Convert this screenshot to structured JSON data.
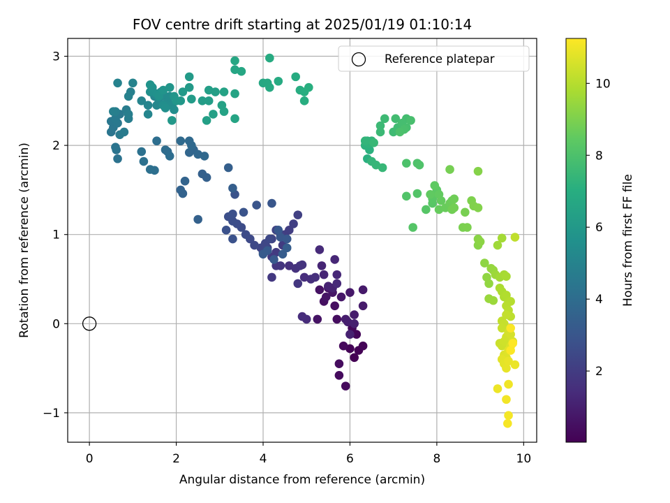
{
  "chart_data": {
    "type": "scatter",
    "title": "FOV centre drift starting at 2025/01/19 01:10:14",
    "xlabel": "Angular distance from reference (arcmin)",
    "ylabel": "Rotation from reference (arcmin)",
    "xlim": [
      -0.5,
      10.3
    ],
    "ylim": [
      -1.33,
      3.2
    ],
    "xticks": [
      0,
      2,
      4,
      6,
      8,
      10
    ],
    "xtick_labels": [
      "0",
      "2",
      "4",
      "6",
      "8",
      "10"
    ],
    "yticks": [
      -1,
      0,
      1,
      2,
      3
    ],
    "ytick_labels": [
      "−1",
      "0",
      "1",
      "2",
      "3"
    ],
    "grid": true,
    "legend": {
      "location": "upper right",
      "entries": [
        "Reference platepar"
      ]
    },
    "reference_point": {
      "x": 0,
      "y": 0,
      "label": "Reference platepar",
      "marker": "hollow circle"
    },
    "colormap": "viridis",
    "colorbar": {
      "label": "Hours from first FF file",
      "range": [
        0.02,
        11.25
      ],
      "ticks": [
        2,
        4,
        6,
        8,
        10
      ]
    },
    "series": [
      {
        "points": [
          [
            6.1,
            -0.38
          ],
          [
            6.2,
            -0.3
          ],
          [
            6.0,
            -0.28
          ],
          [
            6.3,
            -0.25
          ],
          [
            6.15,
            -0.12
          ],
          [
            6.05,
            -0.05
          ],
          [
            5.85,
            -0.25
          ],
          [
            5.9,
            -0.7
          ],
          [
            5.75,
            -0.58
          ],
          [
            5.75,
            -0.45
          ],
          [
            5.7,
            0.05
          ],
          [
            5.65,
            0.2
          ],
          [
            5.4,
            0.25
          ],
          [
            5.5,
            0.4
          ],
          [
            5.3,
            0.38
          ],
          [
            5.25,
            0.05
          ],
          [
            5.45,
            0.3
          ],
          [
            5.6,
            0.35
          ],
          [
            5.8,
            0.3
          ],
          [
            6.0,
            0.35
          ],
          [
            6.3,
            0.38
          ],
          [
            6.3,
            0.2
          ],
          [
            6.1,
            0.1
          ],
          [
            5.9,
            0.05
          ],
          [
            5.95,
            0.02
          ],
          [
            6.1,
            0.0
          ],
          [
            6.0,
            -0.12
          ],
          [
            5.6,
            0.4
          ],
          [
            5.5,
            0.42
          ],
          [
            5.35,
            0.65
          ],
          [
            5.4,
            0.55
          ],
          [
            5.65,
            0.72
          ],
          [
            5.7,
            0.55
          ],
          [
            5.7,
            0.45
          ],
          [
            5.3,
            0.83
          ],
          [
            5.0,
            0.05
          ],
          [
            4.9,
            0.08
          ],
          [
            4.95,
            0.52
          ],
          [
            5.1,
            0.5
          ],
          [
            5.2,
            0.52
          ]
        ]
      },
      {
        "points": [
          [
            4.6,
            0.65
          ],
          [
            4.75,
            0.62
          ],
          [
            4.85,
            0.65
          ],
          [
            4.9,
            0.66
          ],
          [
            4.4,
            0.65
          ],
          [
            4.3,
            0.65
          ],
          [
            4.8,
            0.45
          ],
          [
            4.2,
            0.52
          ],
          [
            4.2,
            0.75
          ],
          [
            4.3,
            0.8
          ],
          [
            4.45,
            0.88
          ],
          [
            4.5,
            1.0
          ],
          [
            4.6,
            1.05
          ],
          [
            4.7,
            1.12
          ],
          [
            4.8,
            1.22
          ],
          [
            4.4,
            1.0
          ],
          [
            4.3,
            1.05
          ],
          [
            4.2,
            0.95
          ],
          [
            4.1,
            0.85
          ],
          [
            4.0,
            0.8
          ],
          [
            3.95,
            0.85
          ],
          [
            4.05,
            0.9
          ],
          [
            4.15,
            0.95
          ],
          [
            3.8,
            0.88
          ],
          [
            3.7,
            0.95
          ],
          [
            3.6,
            1.0
          ],
          [
            3.5,
            1.08
          ],
          [
            3.4,
            1.12
          ],
          [
            3.3,
            1.15
          ],
          [
            3.2,
            1.2
          ],
          [
            3.3,
            1.23
          ],
          [
            3.15,
            1.05
          ],
          [
            3.3,
            0.95
          ],
          [
            3.35,
            1.45
          ],
          [
            3.55,
            1.25
          ],
          [
            3.85,
            1.33
          ],
          [
            4.2,
            1.35
          ],
          [
            4.4,
            0.97
          ],
          [
            4.55,
            0.95
          ],
          [
            4.35,
            1.05
          ],
          [
            4.25,
            0.72
          ],
          [
            4.1,
            0.82
          ],
          [
            4.0,
            0.78
          ],
          [
            4.45,
            0.78
          ],
          [
            4.55,
            0.85
          ]
        ]
      },
      {
        "points": [
          [
            3.3,
            1.52
          ],
          [
            3.2,
            1.75
          ],
          [
            2.7,
            1.64
          ],
          [
            2.6,
            1.68
          ],
          [
            2.5,
            1.17
          ],
          [
            2.1,
            1.5
          ],
          [
            2.15,
            1.46
          ],
          [
            2.2,
            1.6
          ],
          [
            2.4,
            1.95
          ],
          [
            2.3,
            1.92
          ],
          [
            2.5,
            1.9
          ],
          [
            2.65,
            1.88
          ],
          [
            2.35,
            2.0
          ],
          [
            2.3,
            2.05
          ],
          [
            2.1,
            2.05
          ],
          [
            1.8,
            1.93
          ],
          [
            1.75,
            1.95
          ],
          [
            1.85,
            1.88
          ],
          [
            1.55,
            2.05
          ],
          [
            1.5,
            1.72
          ],
          [
            1.4,
            1.73
          ],
          [
            1.25,
            1.82
          ],
          [
            1.2,
            1.93
          ]
        ]
      },
      {
        "points": [
          [
            0.65,
            1.85
          ],
          [
            0.62,
            1.95
          ],
          [
            0.6,
            1.98
          ],
          [
            0.5,
            2.15
          ],
          [
            0.55,
            2.2
          ],
          [
            0.5,
            2.27
          ],
          [
            0.65,
            2.25
          ],
          [
            0.7,
            2.35
          ],
          [
            0.6,
            2.3
          ],
          [
            0.7,
            2.12
          ],
          [
            0.8,
            2.15
          ],
          [
            0.85,
            2.4
          ],
          [
            0.9,
            2.3
          ],
          [
            0.9,
            2.35
          ],
          [
            0.6,
            2.38
          ],
          [
            0.55,
            2.38
          ],
          [
            0.95,
            2.6
          ],
          [
            0.9,
            2.55
          ],
          [
            0.65,
            2.7
          ],
          [
            1.0,
            2.7
          ],
          [
            1.2,
            2.5
          ],
          [
            1.35,
            2.45
          ],
          [
            1.35,
            2.35
          ],
          [
            1.5,
            2.55
          ],
          [
            1.55,
            2.45
          ],
          [
            1.6,
            2.5
          ],
          [
            1.65,
            2.6
          ],
          [
            1.75,
            2.55
          ],
          [
            1.8,
            2.5
          ],
          [
            1.85,
            2.55
          ],
          [
            1.9,
            2.45
          ],
          [
            1.95,
            2.4
          ],
          [
            1.7,
            2.45
          ],
          [
            1.75,
            2.42
          ],
          [
            1.4,
            2.6
          ],
          [
            1.45,
            2.65
          ],
          [
            1.55,
            2.58
          ],
          [
            1.6,
            2.55
          ],
          [
            1.4,
            2.68
          ],
          [
            1.7,
            2.62
          ],
          [
            1.85,
            2.65
          ],
          [
            1.95,
            2.55
          ],
          [
            2.0,
            2.5
          ],
          [
            2.1,
            2.5
          ],
          [
            1.9,
            2.28
          ]
        ]
      },
      {
        "points": [
          [
            2.15,
            2.6
          ],
          [
            2.3,
            2.65
          ],
          [
            2.3,
            2.77
          ],
          [
            2.35,
            2.52
          ],
          [
            2.6,
            2.5
          ],
          [
            2.75,
            2.5
          ],
          [
            2.75,
            2.62
          ],
          [
            2.9,
            2.6
          ],
          [
            2.7,
            2.28
          ],
          [
            2.85,
            2.35
          ],
          [
            3.05,
            2.45
          ],
          [
            3.1,
            2.38
          ],
          [
            3.1,
            2.6
          ],
          [
            3.35,
            2.58
          ],
          [
            3.35,
            2.3
          ],
          [
            3.35,
            2.85
          ],
          [
            3.35,
            2.95
          ],
          [
            3.5,
            2.83
          ],
          [
            4.0,
            2.7
          ],
          [
            4.1,
            2.7
          ],
          [
            4.15,
            2.65
          ],
          [
            4.35,
            2.72
          ],
          [
            4.15,
            2.98
          ],
          [
            4.75,
            2.77
          ],
          [
            4.85,
            2.62
          ],
          [
            4.95,
            2.5
          ],
          [
            4.95,
            2.6
          ],
          [
            5.05,
            2.65
          ]
        ]
      },
      {
        "points": [
          [
            6.4,
            1.85
          ],
          [
            6.45,
            1.95
          ],
          [
            6.35,
            2.0
          ],
          [
            6.4,
            2.05
          ],
          [
            6.45,
            2.02
          ],
          [
            6.5,
            2.05
          ],
          [
            6.35,
            2.05
          ],
          [
            6.5,
            1.82
          ],
          [
            6.6,
            1.78
          ],
          [
            6.75,
            1.75
          ],
          [
            6.55,
            2.03
          ],
          [
            6.7,
            2.15
          ],
          [
            6.7,
            2.22
          ],
          [
            6.8,
            2.3
          ],
          [
            7.0,
            2.15
          ],
          [
            7.1,
            2.2
          ],
          [
            7.05,
            2.3
          ],
          [
            7.3,
            2.3
          ],
          [
            7.2,
            2.25
          ],
          [
            7.3,
            2.2
          ],
          [
            7.4,
            2.28
          ],
          [
            7.25,
            2.18
          ],
          [
            7.15,
            2.15
          ]
        ]
      },
      {
        "points": [
          [
            7.3,
            1.8
          ],
          [
            7.55,
            1.8
          ],
          [
            7.6,
            1.78
          ],
          [
            7.3,
            1.43
          ],
          [
            7.55,
            1.46
          ],
          [
            7.45,
            1.08
          ],
          [
            7.75,
            1.28
          ],
          [
            7.9,
            1.35
          ],
          [
            7.9,
            1.4
          ],
          [
            7.95,
            1.45
          ],
          [
            8.0,
            1.5
          ],
          [
            7.95,
            1.55
          ],
          [
            7.85,
            1.45
          ],
          [
            8.05,
            1.45
          ],
          [
            8.1,
            1.38
          ],
          [
            8.05,
            1.28
          ],
          [
            8.2,
            1.3
          ],
          [
            8.3,
            1.35
          ],
          [
            8.35,
            1.38
          ],
          [
            8.4,
            1.4
          ],
          [
            8.35,
            1.28
          ],
          [
            8.4,
            1.3
          ],
          [
            8.3,
            1.73
          ],
          [
            8.65,
            1.25
          ],
          [
            8.6,
            1.08
          ],
          [
            8.7,
            1.08
          ],
          [
            8.8,
            1.38
          ],
          [
            8.85,
            1.32
          ],
          [
            8.95,
            1.3
          ],
          [
            8.95,
            1.71
          ],
          [
            8.95,
            0.88
          ],
          [
            8.95,
            0.95
          ]
        ]
      },
      {
        "points": [
          [
            9.0,
            0.92
          ],
          [
            9.1,
            0.68
          ],
          [
            9.15,
            0.52
          ],
          [
            9.2,
            0.45
          ],
          [
            9.25,
            0.62
          ],
          [
            9.3,
            0.6
          ],
          [
            9.2,
            0.28
          ],
          [
            9.3,
            0.26
          ],
          [
            9.35,
            0.55
          ],
          [
            9.4,
            0.88
          ],
          [
            9.45,
            0.52
          ],
          [
            9.5,
            0.96
          ],
          [
            9.55,
            0.55
          ],
          [
            9.6,
            0.53
          ],
          [
            9.45,
            0.4
          ],
          [
            9.5,
            0.36
          ],
          [
            9.55,
            0.3
          ],
          [
            9.6,
            0.32
          ],
          [
            9.65,
            0.25
          ],
          [
            9.7,
            0.25
          ],
          [
            9.6,
            0.2
          ],
          [
            9.65,
            0.15
          ],
          [
            9.7,
            0.08
          ],
          [
            9.8,
            0.97
          ],
          [
            9.5,
            0.03
          ],
          [
            9.6,
            0.1
          ],
          [
            9.55,
            0.0
          ],
          [
            9.5,
            -0.05
          ]
        ]
      },
      {
        "points": [
          [
            9.45,
            -0.22
          ],
          [
            9.5,
            -0.25
          ],
          [
            9.55,
            -0.2
          ],
          [
            9.6,
            -0.15
          ],
          [
            9.65,
            -0.1
          ],
          [
            9.7,
            -0.12
          ],
          [
            9.75,
            -0.2
          ],
          [
            9.7,
            -0.25
          ],
          [
            9.55,
            -0.35
          ],
          [
            9.6,
            -0.38
          ],
          [
            9.65,
            -0.3
          ],
          [
            9.5,
            -0.4
          ],
          [
            9.55,
            -0.45
          ],
          [
            9.6,
            -0.5
          ],
          [
            9.65,
            -0.42
          ],
          [
            9.8,
            -0.46
          ],
          [
            9.4,
            -0.73
          ],
          [
            9.65,
            -0.68
          ],
          [
            9.6,
            -0.85
          ],
          [
            9.65,
            -1.03
          ],
          [
            9.63,
            -1.12
          ],
          [
            9.7,
            -0.05
          ],
          [
            9.7,
            -0.3
          ],
          [
            9.75,
            -0.22
          ]
        ]
      }
    ]
  }
}
